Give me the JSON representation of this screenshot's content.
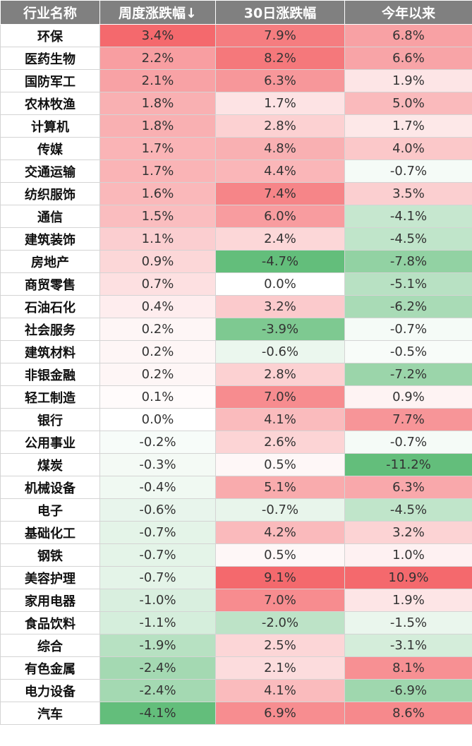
{
  "table": {
    "headers": [
      "行业名称",
      "周度涨跌幅↓",
      "30日涨跌幅",
      "今年以来"
    ],
    "colors": {
      "header_bg": "#808080",
      "positive_max": "#f4696d",
      "negative_max": "#63be7b",
      "neutral": "#ffffff"
    },
    "rows": [
      {
        "name": "环保",
        "weekly": "3.4%",
        "d30": "7.9%",
        "ytd": "6.8%"
      },
      {
        "name": "医药生物",
        "weekly": "2.2%",
        "d30": "8.2%",
        "ytd": "6.6%"
      },
      {
        "name": "国防军工",
        "weekly": "2.1%",
        "d30": "6.3%",
        "ytd": "1.9%"
      },
      {
        "name": "农林牧渔",
        "weekly": "1.8%",
        "d30": "1.7%",
        "ytd": "5.0%"
      },
      {
        "name": "计算机",
        "weekly": "1.8%",
        "d30": "2.8%",
        "ytd": "1.7%"
      },
      {
        "name": "传媒",
        "weekly": "1.7%",
        "d30": "4.8%",
        "ytd": "4.0%"
      },
      {
        "name": "交通运输",
        "weekly": "1.7%",
        "d30": "4.4%",
        "ytd": "-0.7%"
      },
      {
        "name": "纺织服饰",
        "weekly": "1.6%",
        "d30": "7.4%",
        "ytd": "3.5%"
      },
      {
        "name": "通信",
        "weekly": "1.5%",
        "d30": "6.0%",
        "ytd": "-4.1%"
      },
      {
        "name": "建筑装饰",
        "weekly": "1.1%",
        "d30": "2.4%",
        "ytd": "-4.5%"
      },
      {
        "name": "房地产",
        "weekly": "0.9%",
        "d30": "-4.7%",
        "ytd": "-7.8%"
      },
      {
        "name": "商贸零售",
        "weekly": "0.7%",
        "d30": "0.0%",
        "ytd": "-5.1%"
      },
      {
        "name": "石油石化",
        "weekly": "0.4%",
        "d30": "3.2%",
        "ytd": "-6.2%"
      },
      {
        "name": "社会服务",
        "weekly": "0.2%",
        "d30": "-3.9%",
        "ytd": "-0.7%"
      },
      {
        "name": "建筑材料",
        "weekly": "0.2%",
        "d30": "-0.6%",
        "ytd": "-0.5%"
      },
      {
        "name": "非银金融",
        "weekly": "0.2%",
        "d30": "2.8%",
        "ytd": "-7.2%"
      },
      {
        "name": "轻工制造",
        "weekly": "0.1%",
        "d30": "7.0%",
        "ytd": "0.9%"
      },
      {
        "name": "银行",
        "weekly": "0.0%",
        "d30": "4.1%",
        "ytd": "7.7%"
      },
      {
        "name": "公用事业",
        "weekly": "-0.2%",
        "d30": "2.6%",
        "ytd": "-0.7%"
      },
      {
        "name": "煤炭",
        "weekly": "-0.3%",
        "d30": "0.5%",
        "ytd": "-11.2%"
      },
      {
        "name": "机械设备",
        "weekly": "-0.4%",
        "d30": "5.1%",
        "ytd": "6.3%"
      },
      {
        "name": "电子",
        "weekly": "-0.6%",
        "d30": "-0.7%",
        "ytd": "-4.5%"
      },
      {
        "name": "基础化工",
        "weekly": "-0.7%",
        "d30": "4.2%",
        "ytd": "3.2%"
      },
      {
        "name": "钢铁",
        "weekly": "-0.7%",
        "d30": "0.5%",
        "ytd": "1.0%"
      },
      {
        "name": "美容护理",
        "weekly": "-0.7%",
        "d30": "9.1%",
        "ytd": "10.9%"
      },
      {
        "name": "家用电器",
        "weekly": "-1.0%",
        "d30": "7.0%",
        "ytd": "1.9%"
      },
      {
        "name": "食品饮料",
        "weekly": "-1.1%",
        "d30": "-2.0%",
        "ytd": "-1.5%"
      },
      {
        "name": "综合",
        "weekly": "-1.9%",
        "d30": "2.5%",
        "ytd": "-3.1%"
      },
      {
        "name": "有色金属",
        "weekly": "-2.4%",
        "d30": "2.1%",
        "ytd": "8.1%"
      },
      {
        "name": "电力设备",
        "weekly": "-2.4%",
        "d30": "4.1%",
        "ytd": "-6.9%"
      },
      {
        "name": "汽车",
        "weekly": "-4.1%",
        "d30": "6.9%",
        "ytd": "8.6%"
      }
    ]
  }
}
